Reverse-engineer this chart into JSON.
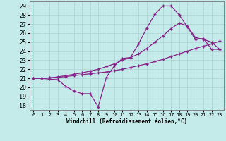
{
  "xlabel": "Windchill (Refroidissement éolien,°C)",
  "xlim": [
    -0.5,
    23.5
  ],
  "ylim": [
    17.5,
    29.5
  ],
  "xticks": [
    0,
    1,
    2,
    3,
    4,
    5,
    6,
    7,
    8,
    9,
    10,
    11,
    12,
    13,
    14,
    15,
    16,
    17,
    18,
    19,
    20,
    21,
    22,
    23
  ],
  "yticks": [
    18,
    19,
    20,
    21,
    22,
    23,
    24,
    25,
    26,
    27,
    28,
    29
  ],
  "bg_color": "#c5eaea",
  "grid_color": "#aad4d4",
  "line_color": "#882288",
  "line1_x": [
    0,
    1,
    2,
    3,
    4,
    5,
    6,
    7,
    8,
    9,
    10,
    11,
    12,
    13,
    14,
    15,
    16,
    17,
    18,
    19,
    20,
    21,
    22,
    23
  ],
  "line1_y": [
    21.0,
    21.0,
    20.9,
    20.85,
    20.1,
    19.6,
    19.3,
    19.3,
    17.85,
    21.1,
    22.4,
    23.2,
    23.3,
    24.85,
    26.55,
    28.1,
    29.0,
    29.0,
    28.0,
    26.7,
    25.3,
    25.4,
    24.2,
    24.2
  ],
  "line2_x": [
    0,
    1,
    2,
    3,
    4,
    5,
    6,
    7,
    8,
    9,
    10,
    11,
    12,
    13,
    14,
    15,
    16,
    17,
    18,
    19,
    20,
    21,
    22,
    23
  ],
  "line2_y": [
    21.0,
    21.0,
    21.05,
    21.1,
    21.2,
    21.3,
    21.4,
    21.5,
    21.6,
    21.7,
    21.85,
    22.0,
    22.2,
    22.4,
    22.6,
    22.85,
    23.1,
    23.4,
    23.7,
    24.0,
    24.3,
    24.55,
    24.8,
    25.1
  ],
  "line3_x": [
    0,
    1,
    2,
    3,
    4,
    5,
    6,
    7,
    8,
    9,
    10,
    11,
    12,
    13,
    14,
    15,
    16,
    17,
    18,
    19,
    20,
    21,
    22,
    23
  ],
  "line3_y": [
    21.0,
    21.0,
    21.05,
    21.15,
    21.3,
    21.45,
    21.6,
    21.8,
    22.0,
    22.3,
    22.6,
    23.0,
    23.3,
    23.7,
    24.3,
    25.0,
    25.7,
    26.5,
    27.1,
    26.8,
    25.5,
    25.3,
    25.0,
    24.2
  ]
}
